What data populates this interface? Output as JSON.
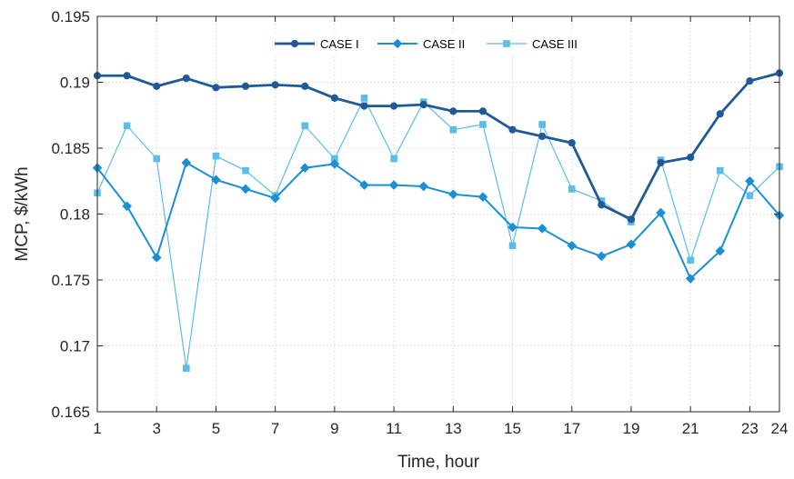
{
  "chart_data": {
    "type": "line",
    "xlabel": "Time, hour",
    "ylabel": "MCP, $/kWh",
    "xlim": [
      1,
      24
    ],
    "ylim": [
      0.165,
      0.195
    ],
    "x_ticks": [
      1,
      3,
      5,
      7,
      9,
      11,
      13,
      15,
      17,
      19,
      21,
      23,
      24
    ],
    "y_ticks": [
      0.165,
      0.17,
      0.175,
      0.18,
      0.185,
      0.19,
      0.195
    ],
    "y_tick_labels": [
      "0.165",
      "0.17",
      "0.175",
      "0.18",
      "0.185",
      "0.19",
      "0.195"
    ],
    "grid": true,
    "legend_position": "top-center",
    "x": [
      1,
      2,
      3,
      4,
      5,
      6,
      7,
      8,
      9,
      10,
      11,
      12,
      13,
      14,
      15,
      16,
      17,
      18,
      19,
      20,
      21,
      22,
      23,
      24
    ],
    "series": [
      {
        "name": "CASE I",
        "color": "#1f5a96",
        "marker": "circle",
        "values": [
          0.1905,
          0.1905,
          0.1897,
          0.1903,
          0.1896,
          0.1897,
          0.1898,
          0.1897,
          0.1888,
          0.1882,
          0.1882,
          0.1883,
          0.1878,
          0.1878,
          0.1864,
          0.1859,
          0.1854,
          0.1807,
          0.1796,
          0.1839,
          0.1843,
          0.1876,
          0.1901,
          0.1907
        ]
      },
      {
        "name": "CASE II",
        "color": "#1b8fd3",
        "marker": "diamond",
        "values": [
          0.1835,
          0.1806,
          0.1767,
          0.1839,
          0.1826,
          0.1819,
          0.1812,
          0.1835,
          0.1838,
          0.1822,
          0.1822,
          0.1821,
          0.1815,
          0.1813,
          0.179,
          0.1789,
          0.1776,
          0.1768,
          0.1777,
          0.1801,
          0.1751,
          0.1772,
          0.1825,
          0.1799
        ]
      },
      {
        "name": "CASE III",
        "color": "#5bbde8",
        "marker": "square",
        "values": [
          0.1816,
          0.1867,
          0.1842,
          0.1683,
          0.1844,
          0.1833,
          0.1814,
          0.1867,
          0.1842,
          0.1888,
          0.1842,
          0.1885,
          0.1864,
          0.1868,
          0.1776,
          0.1868,
          0.1819,
          0.181,
          0.1794,
          0.1841,
          0.1765,
          0.1833,
          0.1814,
          0.1836
        ]
      }
    ]
  }
}
